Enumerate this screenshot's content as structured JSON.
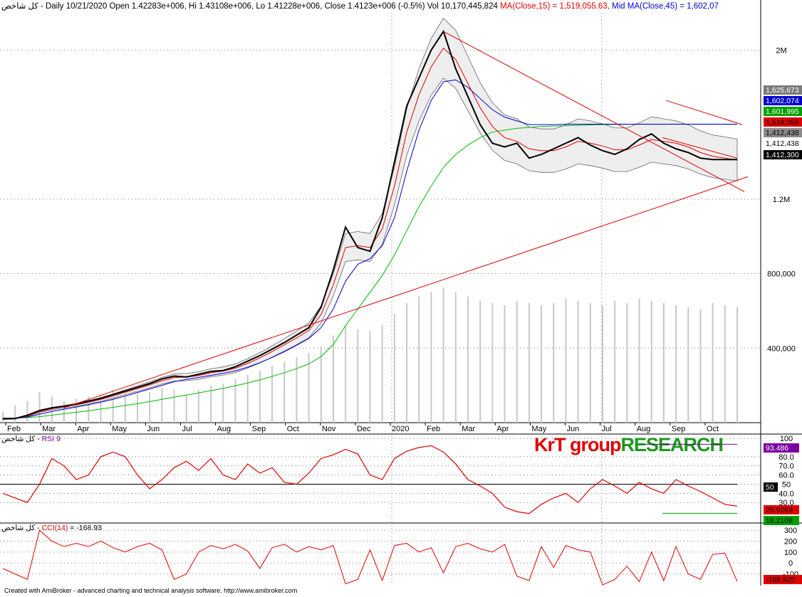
{
  "header": {
    "symbol": "کل شاخص",
    "info": " - Daily 10/21/2020 Open 1.42283e+006, Hi 1.43108e+006, Lo 1.41228e+006, Close 1.4123e+006 (-0.5%) Vol 10,170,445,824 ",
    "ma15_text": "MA(Close,15) = 1,519,055.63,",
    "mid_text": " Mid MA(Close,45) = 1,602,07",
    "ma15_color": "#e00000",
    "mid_color": "#0000cc"
  },
  "rsi_header": {
    "symbol": "کل شاخص",
    "sep": " - ",
    "label": "RSI 9",
    "color": "#7a00a0"
  },
  "cci_header": {
    "symbol": "کل شاخص",
    "sep": " - ",
    "label": "CCI(14)",
    "value_text": " = -168.93",
    "color": "#e00000"
  },
  "footer": "Created with AmiBroker - advanced charting and technical analysis software. http://www.amibroker.com",
  "brand": {
    "part1": "KrT group",
    "part2": "RESEARCH",
    "color1": "#e00000",
    "color2": "#1a9a1a"
  },
  "chart_data": [
    {
      "type": "line",
      "panel": "price",
      "x_axis_labels": [
        "Feb",
        "Mar",
        "Apr",
        "May",
        "Jun",
        "Jul",
        "Aug",
        "Sep",
        "Oct",
        "Nov",
        "Dec",
        "2020",
        "Feb",
        "Mar",
        "Apr",
        "May",
        "Jun",
        "Jul",
        "Aug",
        "Sep",
        "Oct"
      ],
      "y_ticks": [
        "2M",
        "1.2M",
        "800,000",
        "400,000"
      ],
      "y_tick_values": [
        2000000,
        1200000,
        800000,
        400000
      ],
      "ylim": [
        0,
        2200000
      ],
      "price_series": {
        "name": "Close",
        "x": [
          0,
          10,
          20,
          30,
          40,
          50,
          60,
          70,
          80,
          90,
          100,
          110,
          120,
          130,
          140,
          150,
          160,
          170,
          180,
          190,
          200,
          210,
          220,
          230,
          240,
          250,
          260,
          270,
          280,
          290,
          300,
          310,
          320,
          330,
          340,
          350,
          360,
          370,
          380,
          390,
          400,
          410,
          420,
          430,
          440,
          445,
          450,
          455,
          460,
          465,
          470,
          475,
          480,
          485,
          490,
          495,
          500,
          505,
          510,
          515,
          520
        ],
        "values": [
          20000,
          22000,
          40000,
          65000,
          80000,
          88000,
          100000,
          115000,
          130000,
          150000,
          170000,
          190000,
          210000,
          235000,
          250000,
          245000,
          260000,
          275000,
          280000,
          300000,
          330000,
          360000,
          395000,
          430000,
          470000,
          510000,
          620000,
          820000,
          1050000,
          940000,
          920000,
          1100000,
          1400000,
          1700000,
          1850000,
          2000000,
          2100000,
          1900000,
          1750000,
          1600000,
          1500000,
          1480000,
          1500000,
          1420000,
          1440000,
          1470000,
          1500000,
          1530000,
          1490000,
          1460000,
          1440000,
          1470000,
          1520000,
          1550000,
          1500000,
          1470000,
          1450000,
          1420000,
          1412300,
          1412300,
          1412300
        ]
      },
      "ma15": {
        "name": "MA(Close,15)",
        "values": [
          22000,
          22000,
          35000,
          58000,
          75000,
          85000,
          96000,
          110000,
          125000,
          143000,
          163000,
          183000,
          203000,
          225000,
          242000,
          245000,
          253000,
          268000,
          277000,
          292000,
          318000,
          348000,
          382000,
          418000,
          455000,
          495000,
          580000,
          740000,
          940000,
          950000,
          940000,
          1040000,
          1270000,
          1560000,
          1760000,
          1910000,
          2010000,
          1950000,
          1820000,
          1690000,
          1590000,
          1530000,
          1510000,
          1470000,
          1460000,
          1460000,
          1480000,
          1510000,
          1500000,
          1485000,
          1465000,
          1465000,
          1490000,
          1520000,
          1510000,
          1500000,
          1480000,
          1450000,
          1430000,
          1420000,
          1410000
        ]
      },
      "ma45": {
        "name": "Mid MA(Close,45)",
        "values": [
          24000,
          24000,
          30000,
          45000,
          60000,
          72000,
          84000,
          96000,
          110000,
          125000,
          143000,
          162000,
          181000,
          200000,
          220000,
          232000,
          243000,
          254000,
          265000,
          278000,
          298000,
          322000,
          350000,
          381000,
          415000,
          452000,
          510000,
          610000,
          760000,
          850000,
          880000,
          950000,
          1100000,
          1350000,
          1570000,
          1730000,
          1830000,
          1840000,
          1800000,
          1740000,
          1680000,
          1640000,
          1620000,
          1600000,
          1600000,
          1600000,
          1602074,
          1602074,
          1602074,
          1602074,
          1602074,
          1602074,
          1602074,
          1602074,
          1602074,
          1602074,
          1602074,
          1602074,
          1602074,
          1602074,
          1602074
        ]
      },
      "ma_long": {
        "values": [
          25000,
          25000,
          27000,
          32000,
          40000,
          48000,
          56000,
          64000,
          73000,
          82000,
          92000,
          102000,
          113000,
          125000,
          137000,
          148000,
          160000,
          172000,
          184000,
          198000,
          213000,
          230000,
          248000,
          268000,
          290000,
          315000,
          355000,
          420000,
          520000,
          610000,
          700000,
          790000,
          900000,
          1030000,
          1160000,
          1270000,
          1370000,
          1440000,
          1490000,
          1530000,
          1560000,
          1570000,
          1580000,
          1585000,
          1590000,
          1592000,
          1594000,
          1596000,
          1598000,
          1600000,
          1601000,
          1601995,
          1601995,
          1601995,
          1601995,
          1601995,
          1601995,
          1601995,
          1601995,
          1601995,
          1601995
        ]
      },
      "volume": {
        "values": [
          5,
          8,
          10,
          14,
          12,
          10,
          11,
          12,
          13,
          15,
          14,
          13,
          14,
          16,
          15,
          13,
          15,
          17,
          18,
          20,
          22,
          24,
          26,
          28,
          30,
          32,
          35,
          40,
          45,
          43,
          42,
          45,
          50,
          55,
          58,
          60,
          62,
          60,
          58,
          56,
          55,
          54,
          56,
          55,
          54,
          55,
          57,
          56,
          55,
          54,
          56,
          55,
          57,
          56,
          55,
          54,
          53,
          52,
          55,
          54,
          53
        ]
      },
      "right_value_tags": [
        {
          "text": "1,625,673",
          "color": "#7a7a7a",
          "text_color": "#ffffff"
        },
        {
          "text": "1,602,074",
          "color": "#0000cc",
          "text_color": "#ffffff"
        },
        {
          "text": "1,601,995",
          "color": "#00a000",
          "text_color": "#ffffff"
        },
        {
          "text": "1,519,056",
          "color": "#e00000",
          "text_color": "#000000"
        },
        {
          "text": "1,412,438",
          "color": "#8a8a8a",
          "text_color": "#000000"
        },
        {
          "text": "1,412,438",
          "color": "#ffffff",
          "text_color": "#000000"
        },
        {
          "text": "1,412,300",
          "color": "#000000",
          "text_color": "#ffffff"
        }
      ]
    },
    {
      "type": "line",
      "panel": "rsi",
      "name": "RSI 9",
      "y_ticks": [
        "100",
        "80.0",
        "70.0",
        "60.0",
        "50",
        "40.0",
        "30.0"
      ],
      "y_tick_values": [
        100,
        80,
        70,
        60,
        50,
        40,
        30
      ],
      "ylim": [
        10,
        100
      ],
      "midline": 50,
      "values": [
        40,
        35,
        30,
        50,
        78,
        70,
        55,
        60,
        80,
        85,
        80,
        60,
        45,
        55,
        68,
        75,
        65,
        78,
        60,
        55,
        72,
        62,
        68,
        52,
        50,
        62,
        78,
        82,
        88,
        83,
        60,
        55,
        78,
        86,
        90,
        92,
        85,
        72,
        55,
        48,
        40,
        25,
        20,
        18,
        28,
        35,
        40,
        30,
        45,
        55,
        48,
        40,
        52,
        45,
        40,
        55,
        48,
        42,
        35,
        28,
        26
      ],
      "tags": [
        {
          "text": "93.486",
          "color": "#7a00a0",
          "text_color": "#ffffff"
        },
        {
          "text": "50",
          "color": "#000000",
          "text_color": "#ffffff"
        },
        {
          "text": "25.9263",
          "color": "#e00000",
          "text_color": "#000000"
        },
        {
          "text": "18.2108",
          "color": "#00a000",
          "text_color": "#000000"
        }
      ]
    },
    {
      "type": "line",
      "panel": "cci",
      "name": "CCI(14)",
      "y_ticks": [
        "300",
        "200",
        "100",
        "0",
        "-100"
      ],
      "y_tick_values": [
        300,
        200,
        100,
        0,
        -100
      ],
      "ylim": [
        -200,
        320
      ],
      "values": [
        -50,
        -100,
        -150,
        300,
        200,
        150,
        180,
        150,
        200,
        140,
        100,
        150,
        180,
        120,
        -150,
        -100,
        100,
        160,
        130,
        170,
        110,
        -50,
        140,
        170,
        100,
        150,
        120,
        160,
        -190,
        -150,
        120,
        -160,
        160,
        180,
        100,
        140,
        -90,
        150,
        180,
        130,
        100,
        170,
        -120,
        -160,
        150,
        -40,
        160,
        120,
        100,
        -200,
        -150,
        -30,
        -170,
        100,
        -160,
        150,
        -100,
        -150,
        80,
        90,
        -168.925
      ],
      "tags": [
        {
          "text": "-168.925",
          "color": "#e00000",
          "text_color": "#000000"
        }
      ]
    }
  ]
}
